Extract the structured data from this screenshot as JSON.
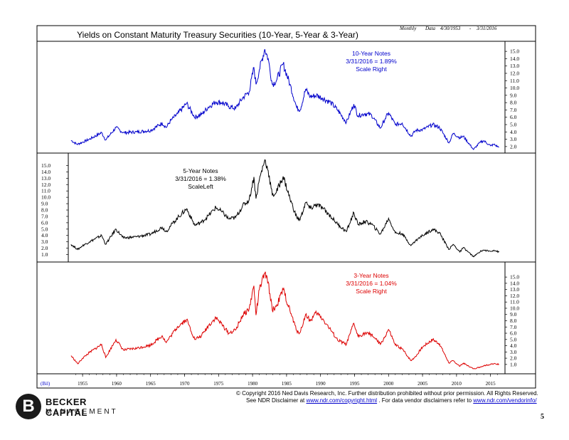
{
  "chart_data": {
    "type": "line",
    "title": "Yields on Constant Maturity  Treasury Securities (10-Year,  5-Year & 3-Year)",
    "header_meta": {
      "frequency": "Monthly",
      "label": "Data",
      "start": "4/30/1953",
      "separator": "-",
      "end": "3/31/2016"
    },
    "units_label": "(Bil)",
    "x_ticks": [
      "1955",
      "1960",
      "1965",
      "1970",
      "1975",
      "1980",
      "1985",
      "1990",
      "1995",
      "2000",
      "2005",
      "2010",
      "2015"
    ],
    "xlim": [
      1953,
      2016.5
    ],
    "panels": [
      {
        "id": "ten-year",
        "series_name": "10-Year Notes",
        "annotation_lines": [
          "10-Year Notes",
          "3/31/2016 = 1.89%",
          "Scale Right"
        ],
        "color": "#0000cc",
        "axis_side": "right",
        "ylim": [
          1.5,
          15.5
        ],
        "y_ticks": [
          "2.0",
          "3.0",
          "4.0",
          "5.0",
          "6.0",
          "7.0",
          "8.0",
          "9.0",
          "10.0",
          "11.0",
          "12.0",
          "13.0",
          "14.0",
          "15.0"
        ],
        "points": [
          [
            1953.3,
            2.85
          ],
          [
            1954.2,
            2.3
          ],
          [
            1955.0,
            2.6
          ],
          [
            1956.0,
            3.0
          ],
          [
            1957.8,
            3.9
          ],
          [
            1958.4,
            2.9
          ],
          [
            1959.9,
            4.6
          ],
          [
            1961.0,
            3.9
          ],
          [
            1963.0,
            4.0
          ],
          [
            1965.0,
            4.2
          ],
          [
            1966.7,
            5.2
          ],
          [
            1967.3,
            4.6
          ],
          [
            1968.0,
            5.6
          ],
          [
            1969.0,
            6.5
          ],
          [
            1970.3,
            7.9
          ],
          [
            1971.5,
            6.0
          ],
          [
            1972.5,
            6.4
          ],
          [
            1973.5,
            7.4
          ],
          [
            1974.6,
            8.1
          ],
          [
            1975.5,
            8.0
          ],
          [
            1976.5,
            7.5
          ],
          [
            1977.5,
            7.2
          ],
          [
            1978.5,
            8.6
          ],
          [
            1979.5,
            9.5
          ],
          [
            1980.2,
            12.8
          ],
          [
            1980.5,
            10.5
          ],
          [
            1981.0,
            12.5
          ],
          [
            1981.8,
            15.3
          ],
          [
            1982.3,
            14.0
          ],
          [
            1982.9,
            10.5
          ],
          [
            1983.5,
            11.0
          ],
          [
            1984.5,
            13.3
          ],
          [
            1985.5,
            10.5
          ],
          [
            1986.5,
            7.3
          ],
          [
            1987.0,
            7.0
          ],
          [
            1987.8,
            9.8
          ],
          [
            1988.5,
            8.8
          ],
          [
            1989.4,
            9.0
          ],
          [
            1990.3,
            8.6
          ],
          [
            1991.5,
            8.0
          ],
          [
            1992.5,
            7.0
          ],
          [
            1993.8,
            5.3
          ],
          [
            1994.9,
            7.8
          ],
          [
            1995.5,
            6.2
          ],
          [
            1996.5,
            6.5
          ],
          [
            1997.5,
            6.3
          ],
          [
            1998.8,
            4.5
          ],
          [
            1999.5,
            5.8
          ],
          [
            2000.0,
            6.6
          ],
          [
            2001.0,
            5.0
          ],
          [
            2002.0,
            5.2
          ],
          [
            2003.3,
            3.4
          ],
          [
            2004.0,
            4.2
          ],
          [
            2005.0,
            4.3
          ],
          [
            2006.5,
            5.0
          ],
          [
            2007.5,
            4.6
          ],
          [
            2008.9,
            2.5
          ],
          [
            2009.5,
            3.8
          ],
          [
            2010.5,
            3.2
          ],
          [
            2011.0,
            3.4
          ],
          [
            2012.5,
            1.6
          ],
          [
            2013.5,
            2.6
          ],
          [
            2014.0,
            2.8
          ],
          [
            2015.0,
            2.1
          ],
          [
            2015.5,
            2.3
          ],
          [
            2016.25,
            1.89
          ]
        ]
      },
      {
        "id": "five-year",
        "series_name": "5-Year Notes",
        "annotation_lines": [
          "5-Year Notes",
          "3/31/2016 = 1.38%",
          "ScaleLeft"
        ],
        "color": "#000000",
        "axis_side": "left",
        "ylim": [
          0.5,
          15.5
        ],
        "y_ticks": [
          "1.0",
          "2.0",
          "3.0",
          "4.0",
          "5.0",
          "6.0",
          "7.0",
          "8.0",
          "9.0",
          "10.0",
          "11.0",
          "12.0",
          "13.0",
          "14.0",
          "15.0"
        ],
        "points": [
          [
            1953.3,
            2.6
          ],
          [
            1954.3,
            1.8
          ],
          [
            1955.0,
            2.4
          ],
          [
            1956.0,
            3.0
          ],
          [
            1957.8,
            4.0
          ],
          [
            1958.4,
            2.6
          ],
          [
            1959.9,
            5.0
          ],
          [
            1961.0,
            3.6
          ],
          [
            1963.0,
            3.8
          ],
          [
            1965.0,
            4.2
          ],
          [
            1966.7,
            5.3
          ],
          [
            1967.3,
            4.6
          ],
          [
            1968.0,
            5.6
          ],
          [
            1969.0,
            6.8
          ],
          [
            1970.3,
            8.2
          ],
          [
            1971.5,
            5.6
          ],
          [
            1972.5,
            6.1
          ],
          [
            1973.5,
            7.1
          ],
          [
            1974.6,
            8.4
          ],
          [
            1975.5,
            7.7
          ],
          [
            1976.5,
            6.6
          ],
          [
            1977.5,
            6.8
          ],
          [
            1978.5,
            8.6
          ],
          [
            1979.5,
            9.6
          ],
          [
            1980.2,
            13.2
          ],
          [
            1980.5,
            9.8
          ],
          [
            1981.0,
            12.8
          ],
          [
            1981.8,
            15.9
          ],
          [
            1982.3,
            14.2
          ],
          [
            1982.9,
            10.3
          ],
          [
            1983.5,
            10.8
          ],
          [
            1984.5,
            13.3
          ],
          [
            1985.5,
            9.8
          ],
          [
            1986.5,
            6.8
          ],
          [
            1987.0,
            6.5
          ],
          [
            1987.8,
            9.2
          ],
          [
            1988.5,
            8.2
          ],
          [
            1989.4,
            8.9
          ],
          [
            1990.3,
            8.3
          ],
          [
            1991.5,
            7.0
          ],
          [
            1992.5,
            5.8
          ],
          [
            1993.8,
            4.6
          ],
          [
            1994.9,
            7.6
          ],
          [
            1995.5,
            5.7
          ],
          [
            1996.5,
            6.2
          ],
          [
            1997.5,
            5.8
          ],
          [
            1998.8,
            4.2
          ],
          [
            1999.5,
            5.6
          ],
          [
            2000.0,
            6.7
          ],
          [
            2001.0,
            4.4
          ],
          [
            2002.0,
            4.3
          ],
          [
            2003.3,
            2.4
          ],
          [
            2004.0,
            3.2
          ],
          [
            2005.0,
            4.0
          ],
          [
            2006.5,
            5.0
          ],
          [
            2007.5,
            4.4
          ],
          [
            2008.9,
            1.8
          ],
          [
            2009.5,
            2.6
          ],
          [
            2010.5,
            1.4
          ],
          [
            2011.0,
            2.1
          ],
          [
            2012.5,
            0.65
          ],
          [
            2013.5,
            1.5
          ],
          [
            2014.0,
            1.7
          ],
          [
            2015.0,
            1.5
          ],
          [
            2015.5,
            1.7
          ],
          [
            2016.25,
            1.38
          ]
        ]
      },
      {
        "id": "three-year",
        "series_name": "3-Year Notes",
        "annotation_lines": [
          "3-Year Notes",
          "3/31/2016 = 1.04%",
          "Scale Right"
        ],
        "color": "#dd0000",
        "axis_side": "right",
        "ylim": [
          0.3,
          15.7
        ],
        "y_ticks": [
          "1.0",
          "2.0",
          "3.0",
          "4.0",
          "5.0",
          "6.0",
          "7.0",
          "8.0",
          "9.0",
          "10.0",
          "11.0",
          "12.0",
          "13.0",
          "14.0",
          "15.0"
        ],
        "points": [
          [
            1953.3,
            2.4
          ],
          [
            1954.3,
            1.1
          ],
          [
            1955.0,
            2.0
          ],
          [
            1956.0,
            2.9
          ],
          [
            1957.8,
            4.2
          ],
          [
            1958.4,
            2.1
          ],
          [
            1959.9,
            5.0
          ],
          [
            1961.0,
            3.3
          ],
          [
            1963.0,
            3.6
          ],
          [
            1965.0,
            4.1
          ],
          [
            1966.7,
            5.6
          ],
          [
            1967.3,
            4.5
          ],
          [
            1968.0,
            5.6
          ],
          [
            1969.0,
            7.1
          ],
          [
            1970.3,
            8.2
          ],
          [
            1971.5,
            5.0
          ],
          [
            1972.5,
            5.6
          ],
          [
            1973.5,
            7.2
          ],
          [
            1974.6,
            8.5
          ],
          [
            1975.5,
            7.4
          ],
          [
            1976.5,
            6.0
          ],
          [
            1977.5,
            6.5
          ],
          [
            1978.5,
            8.8
          ],
          [
            1979.5,
            9.9
          ],
          [
            1980.2,
            13.6
          ],
          [
            1980.5,
            8.9
          ],
          [
            1981.0,
            13.0
          ],
          [
            1981.8,
            15.6
          ],
          [
            1982.3,
            14.2
          ],
          [
            1982.9,
            9.7
          ],
          [
            1983.5,
            10.3
          ],
          [
            1984.5,
            13.0
          ],
          [
            1985.5,
            9.6
          ],
          [
            1986.5,
            6.4
          ],
          [
            1987.0,
            6.1
          ],
          [
            1987.8,
            9.0
          ],
          [
            1988.5,
            8.0
          ],
          [
            1989.4,
            9.3
          ],
          [
            1990.3,
            8.3
          ],
          [
            1991.5,
            6.5
          ],
          [
            1992.5,
            4.9
          ],
          [
            1993.8,
            4.2
          ],
          [
            1994.9,
            7.6
          ],
          [
            1995.5,
            5.5
          ],
          [
            1996.5,
            6.0
          ],
          [
            1997.5,
            5.8
          ],
          [
            1998.8,
            4.2
          ],
          [
            1999.5,
            5.5
          ],
          [
            2000.0,
            6.6
          ],
          [
            2001.0,
            4.1
          ],
          [
            2002.0,
            3.5
          ],
          [
            2003.3,
            1.6
          ],
          [
            2004.0,
            2.3
          ],
          [
            2005.0,
            3.8
          ],
          [
            2006.5,
            5.0
          ],
          [
            2007.5,
            4.3
          ],
          [
            2008.9,
            1.2
          ],
          [
            2009.5,
            1.6
          ],
          [
            2010.5,
            0.7
          ],
          [
            2011.0,
            1.2
          ],
          [
            2012.5,
            0.3
          ],
          [
            2013.5,
            0.6
          ],
          [
            2014.0,
            0.8
          ],
          [
            2015.0,
            1.0
          ],
          [
            2015.5,
            1.1
          ],
          [
            2016.25,
            1.04
          ]
        ]
      }
    ]
  },
  "footer": {
    "copyright": "© Copyright 2016 Ned Davis Research, Inc.  Further distribution prohibited without prior permission.  All Rights Reserved.",
    "disclaimer_prefix": "See NDR Disclaimer at",
    "disclaimer_link": "www.ndr.com/copyright.html",
    "vendor_prefix": ".  For data vendor  disclaimers refer to",
    "vendor_link": "www.ndr.com/vendorinfo/"
  },
  "logo": {
    "letter": "B",
    "line1": "BECKER CAPITAL",
    "line2": "MANAGEMENT"
  },
  "page_number": "5"
}
